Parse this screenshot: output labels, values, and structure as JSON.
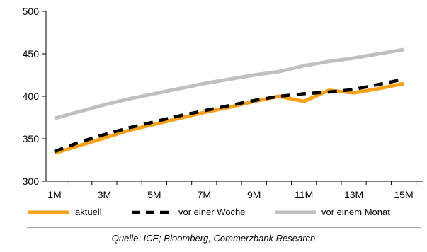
{
  "chart_data": {
    "type": "line",
    "x": [
      "1M",
      "2M",
      "3M",
      "4M",
      "5M",
      "6M",
      "7M",
      "8M",
      "9M",
      "10M",
      "11M",
      "12M",
      "13M",
      "14M",
      "15M"
    ],
    "x_tick_labels": [
      "1M",
      "3M",
      "5M",
      "7M",
      "9M",
      "11M",
      "13M",
      "15M"
    ],
    "y_tick_labels": [
      "300",
      "350",
      "400",
      "450",
      "500"
    ],
    "ylim": [
      300,
      500
    ],
    "grid": false,
    "legend_position": "bottom",
    "series": [
      {
        "name": "aktuell",
        "color": "#f7a11a",
        "dash": "solid",
        "values": [
          333,
          342,
          351,
          360,
          367,
          374,
          381,
          387,
          394,
          400,
          394,
          407,
          404,
          409,
          415
        ]
      },
      {
        "name": "vor einer Woche",
        "color": "#000000",
        "dash": "dashed",
        "values": [
          335,
          346,
          355,
          363,
          370,
          377,
          383,
          389,
          395,
          400,
          403,
          405,
          408,
          414,
          420
        ]
      },
      {
        "name": "vor einem Monat",
        "color": "#c0c0c0",
        "dash": "solid",
        "values": [
          374,
          382,
          390,
          397,
          403,
          409,
          415,
          420,
          425,
          429,
          436,
          441,
          445,
          450,
          455
        ]
      }
    ]
  },
  "source": "Quelle: ICE; Bloomberg, Commerzbank Research"
}
